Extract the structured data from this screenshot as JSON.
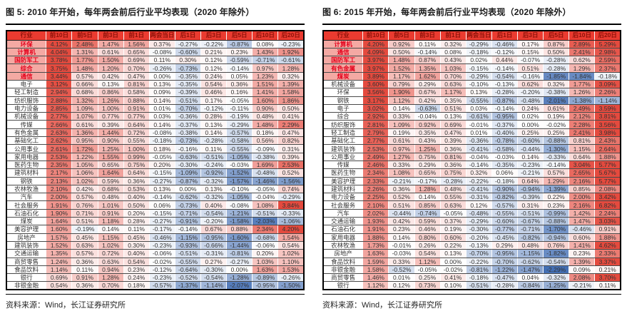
{
  "scale": {
    "pos_max": 3.2,
    "neg_max": 2.3,
    "pos_color": "#e44a3e",
    "neg_color": "#426eb4",
    "header_bg": "#ea3b30",
    "header_text": "#8c1209",
    "highlight_bg": "#f4a9a3",
    "highlight_text": "#e3001b"
  },
  "chart_data": [
    {
      "type": "heatmap",
      "title": "图 5:  2010 年开始，每年两会前后行业平均表现（2020 年除外）",
      "source": "资料来源：Wind，长江证券研究所",
      "columns": [
        "行业",
        "前10日",
        "前5日",
        "前3日",
        "前1日",
        "两会当日",
        "后1日",
        "后3日",
        "后5日",
        "后10日",
        "后20日"
      ],
      "highlighted_industries": [
        "环保",
        "计算机",
        "国防军工",
        "综合",
        "通信"
      ],
      "rows": [
        [
          "环保",
          4.12,
          2.48,
          1.47,
          1.56,
          0.37,
          -0.27,
          -0.22,
          -0.87,
          0.08,
          -0.23
        ],
        [
          "计算机",
          4.04,
          1.31,
          0.61,
          0.65,
          -0.08,
          -0.6,
          0.21,
          0.23,
          1.43,
          1.92
        ],
        [
          "国防军工",
          3.78,
          1.77,
          1.5,
          0.69,
          0.11,
          0.3,
          0.12,
          -0.59,
          -0.71,
          -0.61
        ],
        [
          "综合",
          3.75,
          1.48,
          1.2,
          0.7,
          -0.26,
          -0.73,
          0.12,
          -0.14,
          0.97,
          1.28
        ],
        [
          "通信",
          3.44,
          0.57,
          0.42,
          0.47,
          0.0,
          -0.35,
          0.24,
          0.05,
          1.23,
          0.32
        ],
        [
          "电子",
          3.12,
          0.66,
          0.13,
          0.81,
          0.13,
          -0.35,
          0.54,
          0.36,
          1.51,
          1.39
        ],
        [
          "轻工制造",
          2.94,
          0.68,
          0.86,
          0.58,
          0.09,
          -0.39,
          0.46,
          0.16,
          1.41,
          1.58
        ],
        [
          "纺织服饰",
          2.88,
          1.32,
          1.26,
          0.88,
          0.14,
          -0.51,
          0.17,
          -0.05,
          1.6,
          1.86
        ],
        [
          "电力设备",
          2.85,
          1.09,
          1.0,
          0.91,
          0.01,
          -0.7,
          -0.12,
          -0.11,
          0.9,
          0.5
        ],
        [
          "机械设备",
          2.77,
          1.07,
          0.77,
          0.77,
          0.03,
          -0.36,
          0.28,
          -0.19,
          0.48,
          0.41
        ],
        [
          "传媒",
          2.66,
          0.61,
          0.39,
          0.64,
          0.14,
          -0.37,
          0.13,
          -0.29,
          1.48,
          2.29
        ],
        [
          "有色金属",
          2.63,
          1.36,
          1.44,
          0.72,
          -0.08,
          -0.38,
          0.14,
          -0.57,
          0.18,
          0.47
        ],
        [
          "基础化工",
          2.62,
          0.95,
          0.9,
          0.55,
          -0.18,
          -0.73,
          -0.28,
          -0.58,
          0.56,
          0.82
        ],
        [
          "公用事业",
          2.61,
          1.72,
          1.25,
          1.0,
          0.18,
          -0.16,
          0.11,
          -0.55,
          -0.09,
          0.31
        ],
        [
          "家用电器",
          2.53,
          1.22,
          1.55,
          0.99,
          -0.05,
          -0.63,
          -0.51,
          -1.05,
          -0.38,
          0.39
        ],
        [
          "医药生物",
          2.35,
          1.05,
          0.65,
          0.75,
          0.2,
          -0.3,
          -0.24,
          -0.03,
          1.69,
          2.53
        ],
        [
          "建筑材料",
          2.17,
          1.06,
          1.64,
          0.64,
          -0.15,
          -1.09,
          -0.92,
          -1.52,
          -0.48,
          0.52
        ],
        [
          "钢铁",
          2.13,
          1.02,
          0.59,
          0.36,
          -0.27,
          -0.87,
          -0.32,
          -1.57,
          -1.46,
          -1.56
        ],
        [
          "农林牧渔",
          2.1,
          0.42,
          0.68,
          0.53,
          0.13,
          0.0,
          0.13,
          -0.1,
          -0.05,
          0.74
        ],
        [
          "汽车",
          2.0,
          0.57,
          0.48,
          0.4,
          -0.14,
          -0.62,
          -0.32,
          -1.05,
          -0.04,
          -0.29
        ],
        [
          "社会服务",
          1.91,
          0.76,
          1.01,
          0.5,
          0.06,
          -0.73,
          0.4,
          -0.08,
          1.08,
          3.84
        ],
        [
          "石油石化",
          1.9,
          0.71,
          0.91,
          0.2,
          -0.15,
          -0.71,
          -0.54,
          -1.21,
          -0.51,
          -0.33
        ],
        [
          "煤炭",
          1.64,
          0.51,
          1.18,
          0.28,
          -0.27,
          -0.91,
          -0.2,
          -1.58,
          -2.03,
          -1.06
        ],
        [
          "美容护理",
          1.6,
          -0.19,
          0.14,
          0.11,
          -0.17,
          -0.14,
          0.67,
          0.88,
          2.34,
          4.2
        ],
        [
          "房地产",
          1.57,
          0.45,
          1.15,
          0.45,
          -0.46,
          -1.15,
          -0.95,
          -1.6,
          -0.68,
          1.54
        ],
        [
          "建筑装饰",
          1.52,
          0.63,
          1.02,
          0.3,
          -0.23,
          -0.93,
          -0.66,
          -1.44,
          -0.06,
          0.54
        ],
        [
          "交通运输",
          1.35,
          0.57,
          0.72,
          0.4,
          -0.06,
          -0.51,
          -0.31,
          -0.81,
          0.2,
          1.02
        ],
        [
          "商贸零售",
          1.24,
          0.36,
          0.63,
          0.54,
          -0.02,
          -0.55,
          0.27,
          -0.27,
          1.03,
          1.1
        ],
        [
          "食品饮料",
          1.14,
          0.11,
          0.94,
          0.23,
          -0.12,
          -0.64,
          -0.3,
          0.0,
          1.63,
          1.53
        ],
        [
          "银行",
          0.69,
          0.91,
          1.28,
          0.24,
          -0.23,
          -0.52,
          -0.54,
          -1.28,
          -0.89,
          -0.26
        ],
        [
          "非银金融",
          0.54,
          0.36,
          0.7,
          0.18,
          -0.57,
          -1.37,
          -1.14,
          -2.07,
          -0.95,
          -1.5
        ]
      ]
    },
    {
      "type": "heatmap",
      "title": "图 6:  2015 年开始，每年两会前后行业平均表现（2020 年除外）",
      "source": "资料来源：Wind，长江证券研究所",
      "columns": [
        "行业",
        "前10日",
        "前5日",
        "前3日",
        "前1日",
        "两会当日",
        "后1日",
        "后3日",
        "后5日",
        "后10日",
        "后20日"
      ],
      "highlighted_industries": [
        "计算机",
        "通信",
        "国防军工",
        "有色金属",
        "煤炭"
      ],
      "rows": [
        [
          "计算机",
          4.2,
          0.92,
          0.11,
          0.32,
          -0.29,
          -0.46,
          0.17,
          0.87,
          2.89,
          5.29
        ],
        [
          "通信",
          4.09,
          0.5,
          -0.14,
          0.08,
          -0.18,
          -0.12,
          0.15,
          0.5,
          2.41,
          2.98
        ],
        [
          "国防军工",
          3.97,
          1.48,
          0.87,
          0.43,
          0.02,
          0.44,
          -0.07,
          -0.28,
          0.62,
          2.59
        ],
        [
          "有色金属",
          3.97,
          1.52,
          1.35,
          1.03,
          -0.15,
          -0.14,
          0.51,
          -0.28,
          1.29,
          2.37
        ],
        [
          "煤炭",
          3.89,
          1.17,
          1.62,
          0.7,
          -0.29,
          -0.54,
          -0.16,
          -1.85,
          -1.84,
          -0.18
        ],
        [
          "机械设备",
          3.6,
          0.79,
          0.29,
          0.63,
          -0.1,
          -0.13,
          0.62,
          0.32,
          1.77,
          3.09
        ],
        [
          "环保",
          3.56,
          1.9,
          0.67,
          1.17,
          0.13,
          -0.28,
          -0.2,
          -0.38,
          1.26,
          2.26
        ],
        [
          "钢铁",
          3.17,
          1.12,
          0.42,
          0.35,
          -0.55,
          -0.87,
          -0.48,
          -2.01,
          -1.38,
          -1.14
        ],
        [
          "电子",
          3.02,
          0.14,
          -0.63,
          0.51,
          0.03,
          -0.14,
          0.24,
          0.61,
          2.49,
          3.59
        ],
        [
          "综合",
          2.92,
          0.33,
          -0.04,
          0.13,
          -0.61,
          -0.95,
          0.02,
          0.19,
          2.12,
          3.81
        ],
        [
          "纺织服饰",
          2.81,
          1.09,
          0.92,
          0.69,
          -0.01,
          -0.37,
          0.0,
          -0.02,
          2.28,
          3.56
        ],
        [
          "轻工制造",
          2.79,
          0.19,
          0.35,
          0.47,
          0.01,
          -0.4,
          0.25,
          0.25,
          2.41,
          3.98
        ],
        [
          "基础化工",
          2.77,
          0.61,
          0.43,
          0.39,
          -0.36,
          -0.78,
          -0.6,
          -0.88,
          0.81,
          2.43
        ],
        [
          "建筑装饰",
          2.53,
          0.97,
          1.25,
          0.36,
          -0.41,
          -0.58,
          -0.44,
          -1.3,
          1.15,
          2.64
        ],
        [
          "公用事业",
          2.49,
          1.27,
          0.75,
          0.81,
          -0.04,
          -0.03,
          0.14,
          -0.33,
          0.64,
          1.88
        ],
        [
          "传媒",
          2.46,
          0.33,
          0.29,
          0.36,
          -0.14,
          -0.35,
          -0.23,
          -0.14,
          3.04,
          5.77
        ],
        [
          "医药生物",
          2.34,
          1.08,
          0.65,
          0.75,
          0.32,
          0.06,
          -0.21,
          0.57,
          2.65,
          5.67
        ],
        [
          "美容护理",
          2.33,
          -0.21,
          -0.17,
          -0.28,
          -0.22,
          -0.18,
          0.64,
          1.29,
          2.16,
          5.77
        ],
        [
          "建筑材料",
          2.26,
          0.36,
          1.28,
          0.48,
          -0.41,
          -0.9,
          -0.94,
          -1.39,
          0.85,
          2.08
        ],
        [
          "电力设备",
          2.25,
          0.52,
          0.14,
          0.55,
          -0.31,
          -0.82,
          -0.39,
          0.22,
          2.0,
          3.42
        ],
        [
          "社会服务",
          2.1,
          0.51,
          0.85,
          0.63,
          0.12,
          -0.57,
          0.31,
          0.23,
          2.16,
          6.82
        ],
        [
          "汽车",
          2.02,
          -0.44,
          -0.74,
          -0.05,
          -0.48,
          -0.55,
          -0.51,
          -0.99,
          1.42,
          2.24
        ],
        [
          "交通运输",
          1.93,
          0.42,
          0.59,
          0.37,
          -0.29,
          -0.6,
          -0.67,
          -0.88,
          1.47,
          3.03
        ],
        [
          "石油石化",
          1.91,
          0.23,
          0.46,
          0.19,
          -0.3,
          -0.77,
          -0.71,
          -1.7,
          -0.46,
          0.91
        ],
        [
          "家用电器",
          1.88,
          0.14,
          0.8,
          0.6,
          -0.2,
          -0.45,
          -0.82,
          -0.94,
          0.6,
          1.88
        ],
        [
          "农林牧渔",
          1.73,
          -0.01,
          0.26,
          0.22,
          -0.13,
          0.29,
          0.48,
          0.76,
          1.41,
          4.62
        ],
        [
          "房地产",
          1.63,
          -0.03,
          0.54,
          0.13,
          -0.7,
          -0.95,
          -1.15,
          -1.82,
          0.23,
          2.33
        ],
        [
          "食品饮料",
          1.59,
          0.33,
          1.12,
          0.0,
          -0.22,
          -0.7,
          -0.62,
          -0.54,
          1.39,
          3.37
        ],
        [
          "非银金融",
          1.58,
          -0.52,
          -0.05,
          -0.02,
          -0.81,
          -1.22,
          -1.47,
          -2.29,
          0.09,
          0.21
        ],
        [
          "商贸零售",
          1.46,
          0.01,
          0.25,
          0.41,
          -0.18,
          -0.47,
          0.04,
          -0.32,
          2.08,
          3.7
        ],
        [
          "银行",
          1.12,
          0.12,
          0.73,
          0.1,
          -0.51,
          -0.28,
          -0.84,
          -1.25,
          -0.21,
          0.11
        ]
      ]
    }
  ]
}
